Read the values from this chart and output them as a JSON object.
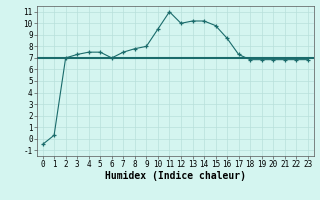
{
  "x": [
    0,
    1,
    2,
    3,
    4,
    5,
    6,
    7,
    8,
    9,
    10,
    11,
    12,
    13,
    14,
    15,
    16,
    17,
    18,
    19,
    20,
    21,
    22,
    23
  ],
  "y_curve": [
    -0.5,
    0.3,
    7.0,
    7.3,
    7.5,
    7.5,
    7.0,
    7.5,
    7.8,
    8.0,
    9.5,
    11.0,
    10.0,
    10.2,
    10.2,
    9.8,
    8.7,
    7.3,
    6.85,
    6.85,
    6.85,
    6.85,
    6.85,
    6.85
  ],
  "y_ref": 7.0,
  "line_color": "#1a6b6b",
  "bg_color": "#d4f5f0",
  "grid_color": "#b8e0db",
  "xlabel": "Humidex (Indice chaleur)",
  "ylim": [
    -1.5,
    11.5
  ],
  "xlim": [
    -0.5,
    23.5
  ],
  "yticks": [
    -1,
    0,
    1,
    2,
    3,
    4,
    5,
    6,
    7,
    8,
    9,
    10,
    11
  ],
  "xticks": [
    0,
    1,
    2,
    3,
    4,
    5,
    6,
    7,
    8,
    9,
    10,
    11,
    12,
    13,
    14,
    15,
    16,
    17,
    18,
    19,
    20,
    21,
    22,
    23
  ],
  "tick_fontsize": 5.5,
  "xlabel_fontsize": 7
}
